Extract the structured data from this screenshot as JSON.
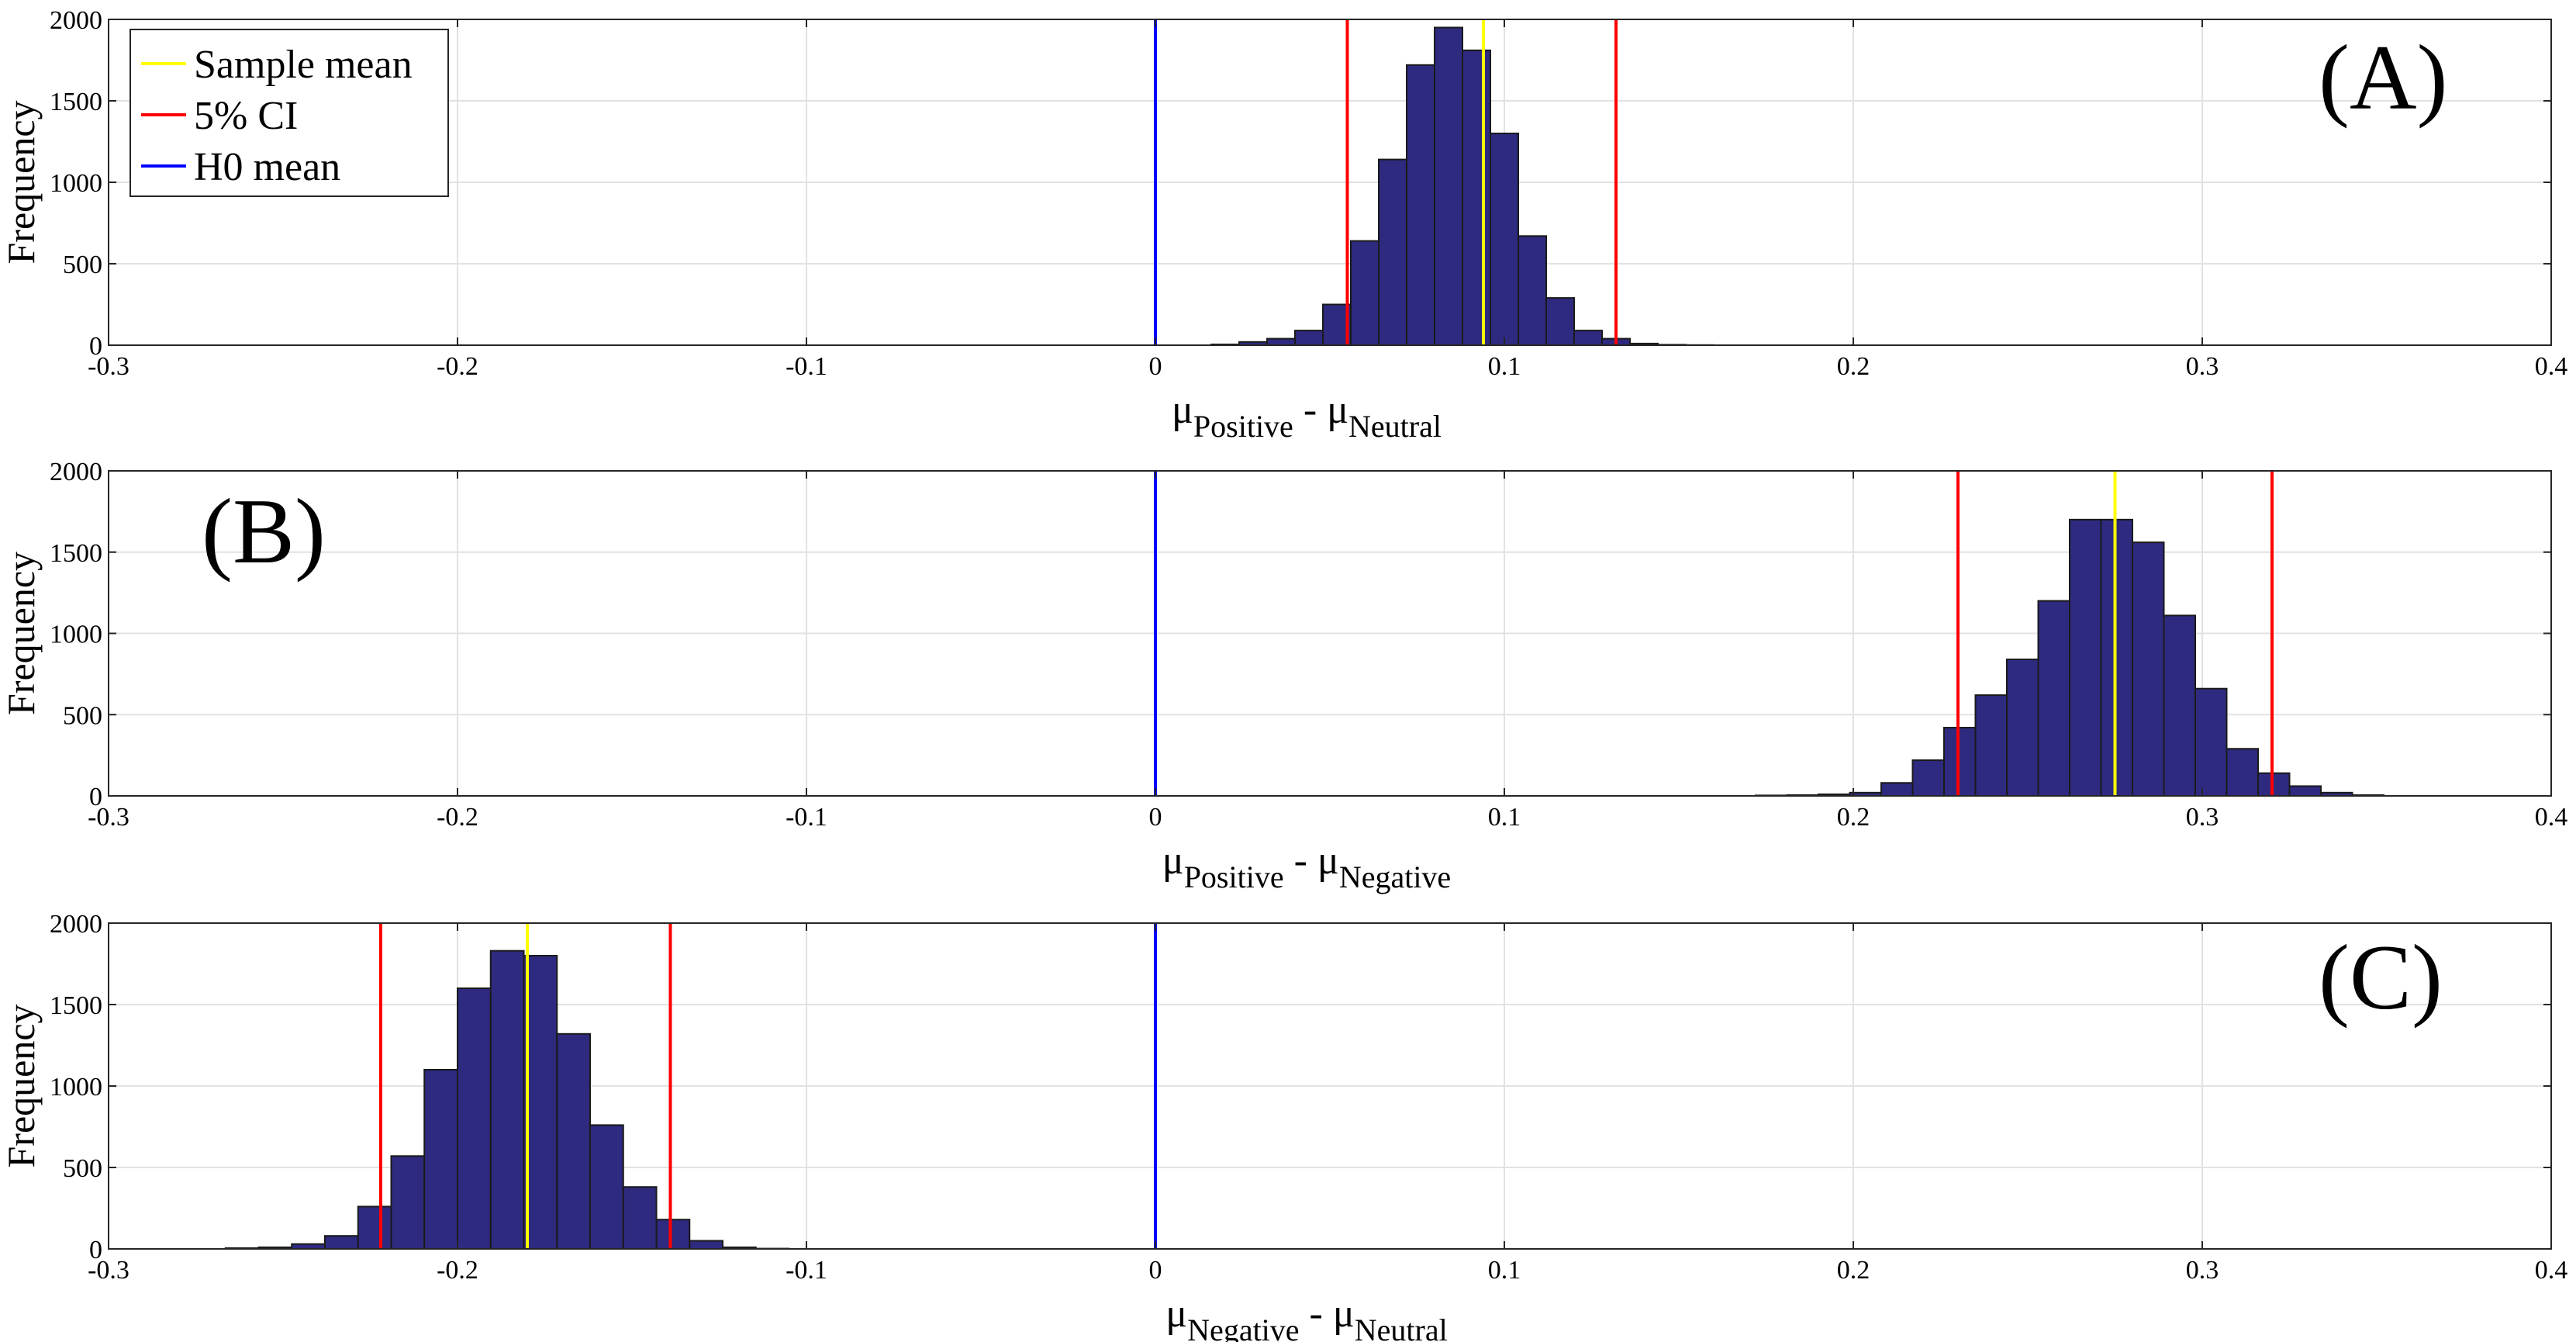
{
  "chart_data": [
    {
      "type": "bar",
      "panel_label": "(A)",
      "ylabel": "Frequency",
      "xlabel": {
        "base": "μ",
        "sub1": "Positive",
        "sep": " - ",
        "base2": "μ",
        "sub2": "Neutral"
      },
      "xlim": [
        -0.3,
        0.4
      ],
      "ylim": [
        0,
        2000
      ],
      "xticks": [
        "-0.3",
        "-0.2",
        "-0.1",
        "0",
        "0.1",
        "0.2",
        "0.3",
        "0.4"
      ],
      "yticks": [
        "0",
        "500",
        "1000",
        "1500",
        "2000"
      ],
      "grid": true,
      "bin_width": 0.008,
      "bins_start": [
        0.016,
        0.024,
        0.032,
        0.04,
        0.048,
        0.056,
        0.064,
        0.072,
        0.08,
        0.088,
        0.096,
        0.104,
        0.112,
        0.12,
        0.128,
        0.136,
        0.144,
        0.152,
        0.16
      ],
      "values": [
        5,
        20,
        40,
        90,
        250,
        640,
        1140,
        1720,
        1950,
        1810,
        1300,
        670,
        290,
        90,
        40,
        10,
        3,
        1,
        0
      ],
      "bar_color": "#2e2a80",
      "sample_mean": 0.094,
      "ci": [
        0.055,
        0.132
      ],
      "h0_mean": 0
    },
    {
      "type": "bar",
      "panel_label": "(B)",
      "ylabel": "Frequency",
      "xlabel": {
        "base": "μ",
        "sub1": "Positive",
        "sep": " - ",
        "base2": "μ",
        "sub2": "Negative"
      },
      "xlim": [
        -0.3,
        0.4
      ],
      "ylim": [
        0,
        2000
      ],
      "xticks": [
        "-0.3",
        "-0.2",
        "-0.1",
        "0",
        "0.1",
        "0.2",
        "0.3",
        "0.4"
      ],
      "yticks": [
        "0",
        "500",
        "1000",
        "1500",
        "2000"
      ],
      "grid": true,
      "bin_width": 0.009,
      "bins_start": [
        0.172,
        0.181,
        0.19,
        0.199,
        0.208,
        0.217,
        0.226,
        0.235,
        0.244,
        0.253,
        0.262,
        0.271,
        0.28,
        0.289,
        0.298,
        0.307,
        0.316,
        0.325,
        0.334,
        0.343
      ],
      "values": [
        3,
        5,
        10,
        20,
        80,
        220,
        420,
        620,
        840,
        1200,
        1700,
        1700,
        1560,
        1110,
        660,
        290,
        140,
        60,
        20,
        5
      ],
      "bar_color": "#2e2a80",
      "sample_mean": 0.275,
      "ci": [
        0.23,
        0.32
      ],
      "h0_mean": 0
    },
    {
      "type": "bar",
      "panel_label": "(C)",
      "ylabel": "Frequency",
      "xlabel": {
        "base": "μ",
        "sub1": "Negative",
        "sep": " - ",
        "base2": "μ",
        "sub2": "Neutral"
      },
      "xlim": [
        -0.3,
        0.4
      ],
      "ylim": [
        0,
        2000
      ],
      "xticks": [
        "-0.3",
        "-0.2",
        "-0.1",
        "0",
        "0.1",
        "0.2",
        "0.3",
        "0.4"
      ],
      "yticks": [
        "0",
        "500",
        "1000",
        "1500",
        "2000"
      ],
      "grid": true,
      "bin_width": 0.0095,
      "bins_start": [
        -0.2665,
        -0.257,
        -0.2475,
        -0.238,
        -0.2285,
        -0.219,
        -0.2095,
        -0.2,
        -0.1905,
        -0.181,
        -0.1715,
        -0.162,
        -0.1525,
        -0.143,
        -0.1335,
        -0.124,
        -0.1145
      ],
      "values": [
        5,
        10,
        30,
        80,
        260,
        570,
        1100,
        1600,
        1830,
        1800,
        1320,
        760,
        380,
        180,
        50,
        10,
        2
      ],
      "bar_color": "#2e2a80",
      "sample_mean": -0.18,
      "ci": [
        -0.222,
        -0.139
      ],
      "h0_mean": 0
    }
  ],
  "legend": {
    "items": [
      {
        "label": "Sample mean",
        "color": "#ffff00"
      },
      {
        "label": " 5% CI",
        "color": "#ff0000"
      },
      {
        "label": "H0 mean",
        "color": "#0000ff"
      }
    ]
  }
}
